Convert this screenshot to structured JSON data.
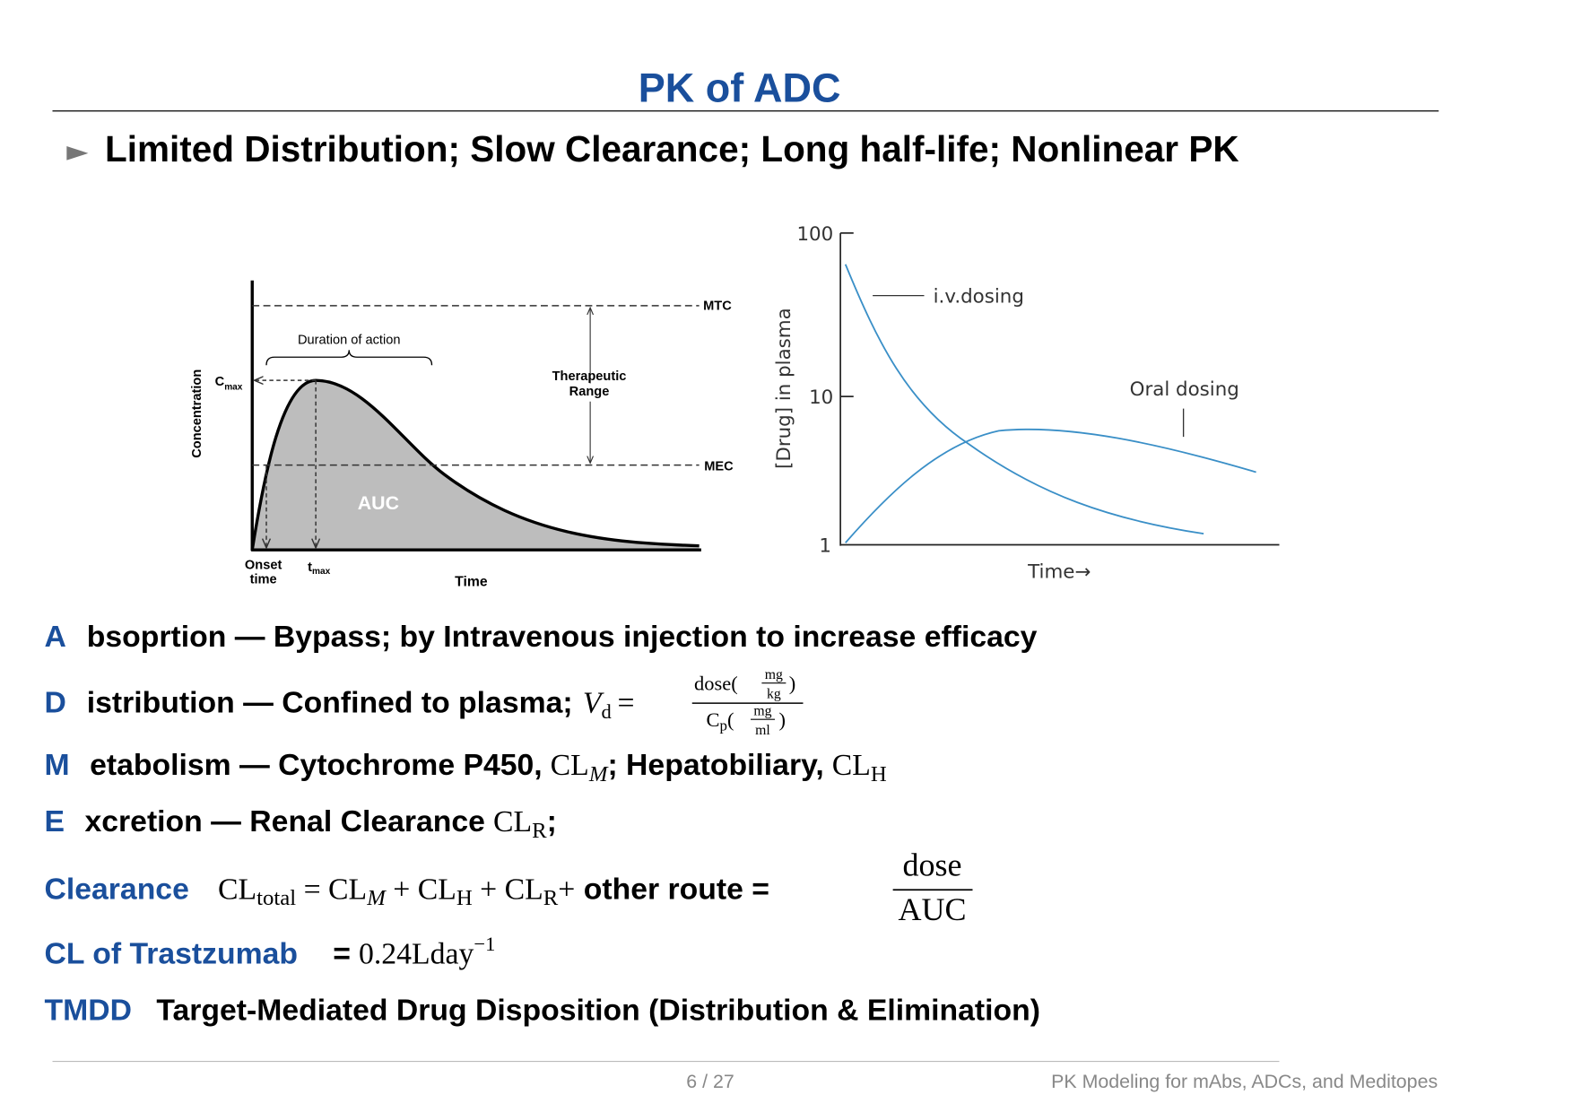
{
  "header": {
    "title": "PK of ADC",
    "bullet_marker": "►",
    "bullet": "Limited Distribution; Slow Clearance; Long half-life; Nonlinear PK"
  },
  "figure_left": {
    "y_label": "Concentration",
    "x_label": "Time",
    "duration": "Duration of action",
    "cmax": "C",
    "cmax_sub": "max",
    "therapeutic": "Therapeutic",
    "range": "Range",
    "mtc": "MTC",
    "mec": "MEC",
    "auc": "AUC",
    "onset": "Onset",
    "onset_time": "time",
    "tmax": "t",
    "tmax_sub": "max"
  },
  "figure_right": {
    "y_label": "[Drug] in plasma",
    "x_label": "Time→",
    "yticks": [
      "100",
      "10",
      "1"
    ],
    "iv": "i.v.dosing",
    "oral": "Oral dosing"
  },
  "rows": [
    {
      "key": "A",
      "text": "bsoprtion — Bypass; by Intravenous injection to increase efficacy"
    },
    {
      "key": "D",
      "text": "istribution — Confined to plasma;",
      "v": "V",
      "v_sub": "d",
      "eq": "=",
      "num": "dose(",
      "num_top": "mg",
      "num_bottom": "kg",
      "num_close": ")",
      "den": "C",
      "den_sub": "p",
      "den_open": "(",
      "den_top": "mg",
      "den_bottom": "ml",
      "den_close": ")"
    },
    {
      "key": "M",
      "text": "etabolism — Cytochrome P450,",
      "cl1": "CL",
      "cl1_sub": "M",
      "text2": "; Hepatobiliary,",
      "cl2": "CL",
      "cl2_sub": "H"
    },
    {
      "key": "E",
      "text": "xcretion — Renal Clearance",
      "cl": "CL",
      "cl_sub": "R",
      "end": ";"
    },
    {
      "key": "Clearance",
      "cl0": "CL",
      "cl0_sub": "total",
      "p0": " = CL",
      "p0_sub": "M",
      "p1": " + CL",
      "p1_sub": "H",
      "p2": " + CL",
      "p2_sub": "R",
      "p3": "+",
      "text": " other route =",
      "num": "dose",
      "den": "AUC"
    },
    {
      "key": "CL of Trastzumab",
      "eq": "=",
      "value": "0.24Lday",
      "exp": "−1"
    },
    {
      "key": "TMDD",
      "text": "Target-Mediated Drug Disposition (Distribution & Elimination)"
    }
  ],
  "footer": {
    "page": "6 / 27",
    "subtitle": "PK Modeling for mAbs, ADCs, and Meditopes"
  }
}
